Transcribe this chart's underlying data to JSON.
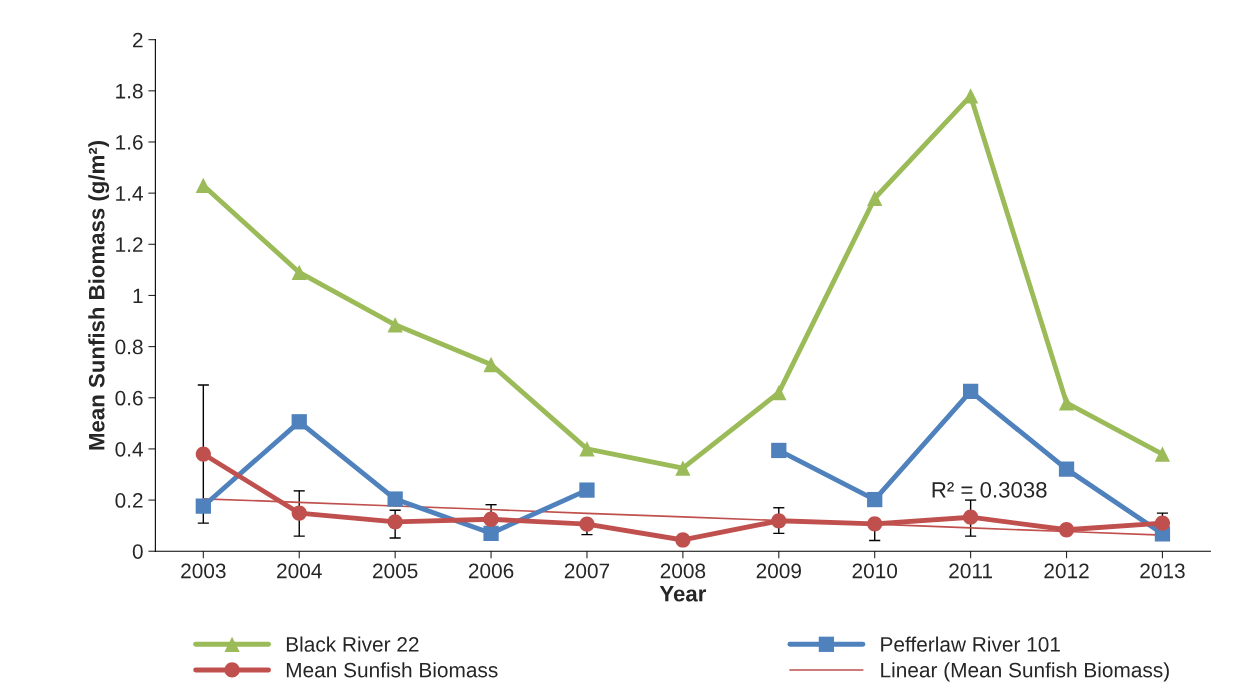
{
  "chart_data": {
    "type": "line",
    "xlabel": "Year",
    "ylabel": "Mean Sunfish Biomass (g/m²)",
    "categories": [
      "2003",
      "2004",
      "2005",
      "2006",
      "2007",
      "2008",
      "2009",
      "2010",
      "2011",
      "2012",
      "2013"
    ],
    "series": [
      {
        "name": "Black River 22",
        "color": "#9bbb59",
        "marker": "triangle",
        "values": [
          1.43,
          1.09,
          0.885,
          0.73,
          0.4,
          0.325,
          0.62,
          1.38,
          1.78,
          0.58,
          0.38
        ]
      },
      {
        "name": "Pefferlaw River 101",
        "color": "#4f81bd",
        "marker": "square",
        "values": [
          0.176,
          0.506,
          0.204,
          0.07,
          0.239,
          null,
          0.394,
          0.202,
          0.625,
          0.321,
          0.068
        ]
      },
      {
        "name": "Mean Sunfish Biomass",
        "color": "#c0504d",
        "marker": "circle",
        "values": [
          0.38,
          0.149,
          0.115,
          0.125,
          0.106,
          0.044,
          0.119,
          0.107,
          0.133,
          0.084,
          0.11
        ],
        "errors": [
          [
            0.11,
            0.65
          ],
          [
            0.059,
            0.236
          ],
          [
            0.052,
            0.16
          ],
          [
            0.125,
            0.182
          ],
          [
            0.065,
            0.106
          ],
          null,
          [
            0.07,
            0.17
          ],
          [
            0.042,
            0.107
          ],
          [
            0.059,
            0.2
          ],
          null,
          [
            0.11,
            0.149
          ]
        ]
      },
      {
        "name": "Linear (Mean Sunfish Biomass)",
        "color": "#c0504d",
        "marker": "none",
        "values": [
          0.205,
          0.191,
          0.177,
          0.163,
          0.148,
          0.134,
          0.12,
          0.106,
          0.091,
          0.077,
          0.063
        ]
      }
    ],
    "ylim": [
      0,
      2
    ],
    "yticks": [
      0,
      0.2,
      0.4,
      0.6,
      0.8,
      1,
      1.2,
      1.4,
      1.6,
      1.8,
      2
    ],
    "annotations": [
      "R² = 0.3038"
    ],
    "grid": false,
    "legend": "bottom"
  }
}
